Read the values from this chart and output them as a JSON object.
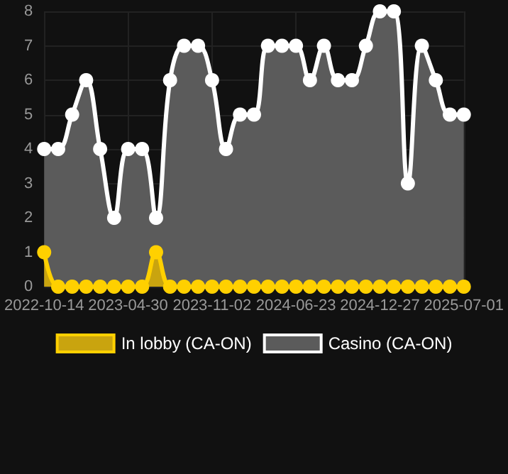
{
  "chart_data": {
    "type": "area",
    "categories": [
      "2022-10-14",
      null,
      null,
      null,
      null,
      null,
      "2023-04-30",
      null,
      null,
      null,
      null,
      null,
      "2023-11-02",
      null,
      null,
      null,
      null,
      null,
      "2024-06-23",
      null,
      null,
      null,
      null,
      null,
      "2024-12-27",
      null,
      null,
      null,
      null,
      null,
      "2025-07-01"
    ],
    "series": [
      {
        "name": "In lobby (CA-ON)",
        "color": "#ffd000",
        "values": [
          1,
          0,
          0,
          0,
          0,
          0,
          0,
          0,
          1,
          0,
          0,
          0,
          0,
          0,
          0,
          0,
          0,
          0,
          0,
          0,
          0,
          0,
          0,
          0,
          0,
          0,
          0,
          0,
          0,
          0,
          0
        ]
      },
      {
        "name": "Casino (CA-ON)",
        "color": "#ffffff",
        "values": [
          4,
          4,
          5,
          6,
          4,
          2,
          4,
          4,
          2,
          6,
          7,
          7,
          6,
          4,
          5,
          5,
          7,
          7,
          7,
          6,
          7,
          6,
          6,
          7,
          8,
          8,
          3,
          7,
          6,
          5,
          5
        ]
      }
    ],
    "ylim": [
      0,
      8
    ],
    "yticks": [
      0,
      1,
      2,
      3,
      4,
      5,
      6,
      7,
      8
    ],
    "grid": true,
    "legend": "bottom",
    "marker": "circle"
  }
}
